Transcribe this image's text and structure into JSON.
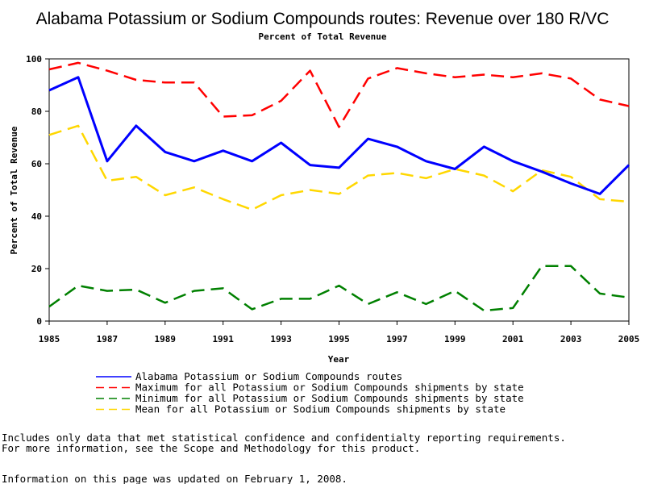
{
  "chart_data": {
    "type": "line",
    "title": "Alabama Potassium or Sodium Compounds routes: Revenue over 180 R/VC",
    "subtitle": "Percent of Total Revenue",
    "xlabel": "Year",
    "ylabel": "Percent of Total Revenue",
    "xlim": [
      1985,
      2005
    ],
    "ylim": [
      0,
      100
    ],
    "x_ticks": [
      "1985",
      "1987",
      "1989",
      "1991",
      "1993",
      "1995",
      "1997",
      "1999",
      "2001",
      "2003",
      "2005"
    ],
    "y_ticks": [
      "0",
      "20",
      "40",
      "60",
      "80",
      "100"
    ],
    "grid": false,
    "legend_position": "bottom",
    "x": [
      1985,
      1986,
      1987,
      1988,
      1989,
      1990,
      1991,
      1992,
      1993,
      1994,
      1995,
      1996,
      1997,
      1998,
      1999,
      2000,
      2001,
      2002,
      2003,
      2004,
      2005
    ],
    "series": [
      {
        "name": "Alabama Potassium or Sodium Compounds routes",
        "color": "#0000ff",
        "style": "solid",
        "values": [
          88,
          93,
          61,
          74.5,
          64.5,
          61,
          65,
          61,
          68,
          59.5,
          58.5,
          69.5,
          66.5,
          61,
          58,
          66.5,
          61,
          57,
          52.5,
          48.5,
          59.5
        ]
      },
      {
        "name": "Maximum for all Potassium or Sodium Compounds shipments by state",
        "color": "#ff0000",
        "style": "dashed",
        "values": [
          96,
          98.5,
          95.5,
          92,
          91,
          91,
          78,
          78.5,
          84,
          95.5,
          74,
          92.5,
          96.5,
          94.5,
          93,
          94,
          93,
          94.5,
          92.5,
          84.5,
          82
        ]
      },
      {
        "name": "Minimum for all Potassium or Sodium Compounds shipments by state",
        "color": "#008000",
        "style": "dashed",
        "values": [
          5.5,
          13.5,
          11.5,
          12,
          7,
          11.5,
          12.5,
          4.5,
          8.5,
          8.5,
          13.5,
          6.5,
          11,
          6.5,
          11.5,
          4,
          5,
          21,
          21,
          10.5,
          9
        ]
      },
      {
        "name": "Mean for all Potassium or Sodium Compounds shipments by state",
        "color": "#ffd700",
        "style": "dashed",
        "values": [
          71,
          74.5,
          53.5,
          55,
          48,
          51,
          46.5,
          42.5,
          48,
          50,
          48.5,
          55.5,
          56.5,
          54.5,
          58,
          55.5,
          49.5,
          57.5,
          55,
          46.5,
          45.5
        ]
      }
    ]
  },
  "footnotes": {
    "line1": "Includes only data that met statistical confidence and confidentialty reporting requirements.",
    "line2": "For more information, see the Scope and Methodology for this product.",
    "updated": "Information on this page was updated on February 1, 2008."
  }
}
